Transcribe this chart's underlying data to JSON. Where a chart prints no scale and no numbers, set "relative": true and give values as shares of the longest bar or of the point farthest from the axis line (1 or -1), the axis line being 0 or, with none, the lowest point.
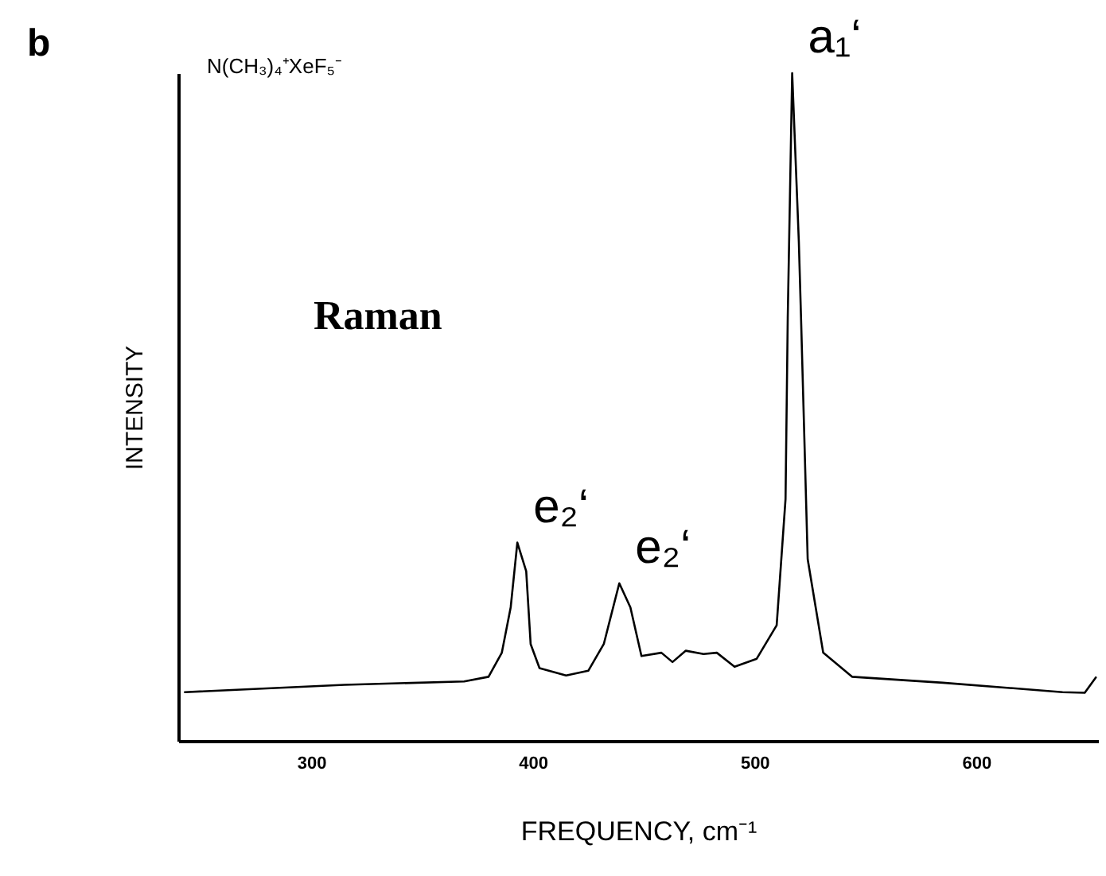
{
  "chart_data": {
    "type": "line",
    "relative": true,
    "xlabel": "FREQUENCY, cm⁻¹",
    "ylabel": "INTENSITY",
    "xlim": [
      240,
      655
    ],
    "xticks": [
      300,
      400,
      500,
      600
    ],
    "grid": false,
    "marker": "none",
    "line_style": "solid",
    "annotations": [
      "b",
      "N(CH₃)₄⁺XeF₅⁻",
      "Raman",
      {
        "text": "e₂‘",
        "x": 393,
        "y": 0.297
      },
      {
        "text": "e₂‘",
        "x": 439,
        "y": 0.236
      },
      {
        "text": "a₁‘",
        "x": 517,
        "y": 1.0
      }
    ],
    "series": [
      {
        "color": "#000000",
        "x": [
          243,
          315,
          369,
          380,
          386,
          390,
          393,
          397,
          399,
          403,
          415,
          425,
          432,
          439,
          444,
          449,
          458,
          463,
          469,
          477,
          483,
          491,
          501,
          510,
          514,
          515,
          517,
          520,
          521,
          524,
          531,
          544,
          585,
          639,
          649,
          654
        ],
        "values": [
          0.073,
          0.084,
          0.089,
          0.096,
          0.132,
          0.2,
          0.297,
          0.254,
          0.145,
          0.109,
          0.098,
          0.105,
          0.145,
          0.236,
          0.2,
          0.127,
          0.132,
          0.118,
          0.135,
          0.13,
          0.132,
          0.111,
          0.123,
          0.173,
          0.362,
          0.633,
          1.0,
          0.748,
          0.633,
          0.272,
          0.132,
          0.096,
          0.087,
          0.073,
          0.072,
          0.095
        ]
      }
    ]
  }
}
